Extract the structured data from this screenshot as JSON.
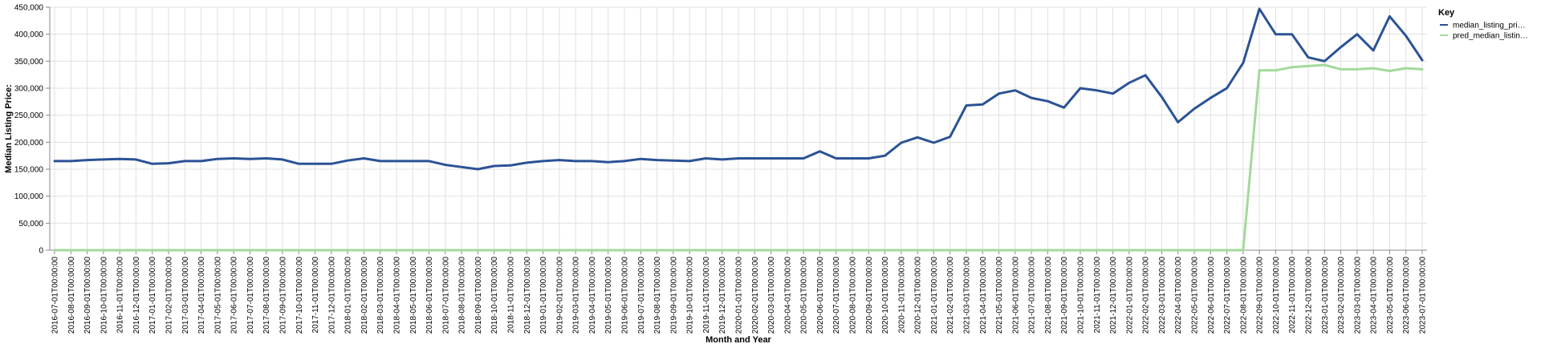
{
  "chart_data": {
    "type": "line",
    "xlabel": "Month and Year",
    "ylabel": "Median Listing Price:",
    "ylim": [
      0,
      450000
    ],
    "y_ticks": [
      "0",
      "50,000",
      "100,000",
      "150,000",
      "200,000",
      "250,000",
      "300,000",
      "350,000",
      "400,000",
      "450,000"
    ],
    "grid": true,
    "legend": {
      "title": "Key",
      "placement": "top-right",
      "entries": [
        {
          "label": "median_listing_pri…",
          "color": "#2b5296"
        },
        {
          "label": "pred_median_listin…",
          "color": "#a3d99b"
        }
      ]
    },
    "x": [
      "2016-07-01T00:00:00",
      "2016-08-01T00:00:00",
      "2016-09-01T00:00:00",
      "2016-10-01T00:00:00",
      "2016-11-01T00:00:00",
      "2016-12-01T00:00:00",
      "2017-01-01T00:00:00",
      "2017-02-01T00:00:00",
      "2017-03-01T00:00:00",
      "2017-04-01T00:00:00",
      "2017-05-01T00:00:00",
      "2017-06-01T00:00:00",
      "2017-07-01T00:00:00",
      "2017-08-01T00:00:00",
      "2017-09-01T00:00:00",
      "2017-10-01T00:00:00",
      "2017-11-01T00:00:00",
      "2017-12-01T00:00:00",
      "2018-01-01T00:00:00",
      "2018-02-01T00:00:00",
      "2018-03-01T00:00:00",
      "2018-04-01T00:00:00",
      "2018-05-01T00:00:00",
      "2018-06-01T00:00:00",
      "2018-07-01T00:00:00",
      "2018-08-01T00:00:00",
      "2018-09-01T00:00:00",
      "2018-10-01T00:00:00",
      "2018-11-01T00:00:00",
      "2018-12-01T00:00:00",
      "2019-01-01T00:00:00",
      "2019-02-01T00:00:00",
      "2019-03-01T00:00:00",
      "2019-04-01T00:00:00",
      "2019-05-01T00:00:00",
      "2019-06-01T00:00:00",
      "2019-07-01T00:00:00",
      "2019-08-01T00:00:00",
      "2019-09-01T00:00:00",
      "2019-10-01T00:00:00",
      "2019-11-01T00:00:00",
      "2019-12-01T00:00:00",
      "2020-01-01T00:00:00",
      "2020-02-01T00:00:00",
      "2020-03-01T00:00:00",
      "2020-04-01T00:00:00",
      "2020-05-01T00:00:00",
      "2020-06-01T00:00:00",
      "2020-07-01T00:00:00",
      "2020-08-01T00:00:00",
      "2020-09-01T00:00:00",
      "2020-10-01T00:00:00",
      "2020-11-01T00:00:00",
      "2020-12-01T00:00:00",
      "2021-01-01T00:00:00",
      "2021-02-01T00:00:00",
      "2021-03-01T00:00:00",
      "2021-04-01T00:00:00",
      "2021-05-01T00:00:00",
      "2021-06-01T00:00:00",
      "2021-07-01T00:00:00",
      "2021-08-01T00:00:00",
      "2021-09-01T00:00:00",
      "2021-10-01T00:00:00",
      "2021-11-01T00:00:00",
      "2021-12-01T00:00:00",
      "2022-01-01T00:00:00",
      "2022-02-01T00:00:00",
      "2022-03-01T00:00:00",
      "2022-04-01T00:00:00",
      "2022-05-01T00:00:00",
      "2022-06-01T00:00:00",
      "2022-07-01T00:00:00",
      "2022-08-01T00:00:00",
      "2022-09-01T00:00:00",
      "2022-10-01T00:00:00",
      "2022-11-01T00:00:00",
      "2022-12-01T00:00:00",
      "2023-01-01T00:00:00",
      "2023-02-01T00:00:00",
      "2023-03-01T00:00:00",
      "2023-04-01T00:00:00",
      "2023-05-01T00:00:00",
      "2023-06-01T00:00:00",
      "2023-07-01T00:00:00"
    ],
    "x_tick_labels": [
      "2016-07-01T00:00:00",
      "2016-08-01T00:00:00",
      "2016-09-01T00:00:00",
      "2016-10-01T00:00:00",
      "2016-11-01T00:00:00",
      "2016-12-01T00:00:00",
      "2017-01-01T00:00:00",
      "2017-02-01T00:00:00",
      "2017-03-01T00:00:00",
      "2017-04-01T00:00:00",
      "2017-05-01T00:00:00",
      "2017-06-01T00:00:00",
      "2017-07-01T00:00:00",
      "2017-08-01T00:00:00",
      "2017-09-01T00:00:00",
      "2017-10-01T00:00:00",
      "2017-11-01T00:00:00",
      "2017-12-01T00:00:00",
      "2018-01-01T00:00:00",
      "2018-02-01T00:00:00",
      "2018-03-01T00:00:00",
      "2018-04-01T00:00:00",
      "2018-05-01T00:00:00",
      "2018-06-01T00:00:00",
      "2018-07-01T00:00:00",
      "2018-08-01T00:00:00",
      "2018-09-01T00:00:00",
      "2018-10-01T00:00:00",
      "2018-11-01T00:00:00",
      "2018-12-01T00:00:00",
      "2019-01-01T00:00:00",
      "2019-02-01T00:00:00",
      "2019-03-01T00:00:00",
      "2019-04-01T00:00:00",
      "2019-05-01T00:00:00",
      "2019-06-01T00:00:00",
      "2019-07-01T00:00:00",
      "2019-08-01T00:00:00",
      "2019-09-01T00:00:00",
      "2019-10-01T00:00:00",
      "2019-11-01T00:00:00",
      "2019-12-01T00:00:00",
      "2020-01-01T00:00:00",
      "2020-02-01T00:00:00",
      "2020-03-01T00:00:00",
      "2020-04-01T00:00:00",
      "2020-05-01T00:00:00",
      "2020-06-01T00:00:00",
      "2020-07-01T00:00:00",
      "2020-08-01T00:00:00",
      "2020-09-01T00:00:00",
      "2020-10-01T00:00:00",
      "2020-11-01T00:00:00",
      "2020-12-01T00:00:00",
      "2021-01-01T00:00:00",
      "2021-02-01T00:00:00",
      "2021-03-01T00:00:00",
      "2021-04-01T00:00:00",
      "2021-05-01T00:00:00",
      "2021-06-01T00:00:00",
      "2021-07-01T00:00:00",
      "2021-08-01T00:00:00",
      "2021-09-01T00:00:00",
      "2021-10-01T00:00:00",
      "2021-11-01T00:00:00",
      "2021-12-01T00:00:00",
      "2022-01-01T00:00:00",
      "2022-02-01T00:00:00",
      "2022-03-01T00:00:00",
      "2022-04-01T00:00:00",
      "2022-05-01T00:00:00",
      "2022-06-01T00:00:00",
      "2022-07-01T00:00:00",
      "2022-08-01T00:00:00",
      "2022-09-01T00:00:00",
      "2022-10-01T00:00:00",
      "2022-11-01T00:00:00",
      "2022-12-01T00:00:00",
      "2023-01-01T00:00:00",
      "2023-02-01T00:00:00",
      "2023-03-01T00:00:00",
      "2023-04-01T00:00:00",
      "2023-05-01T00:00:00",
      "2023-06-01T00:00:00",
      "2023-07-01T00:00:00"
    ],
    "series": [
      {
        "name": "median_listing_pri…",
        "color": "#2b5296",
        "values": [
          165000,
          165000,
          167000,
          168000,
          169000,
          168000,
          160000,
          161000,
          165000,
          165000,
          169000,
          170000,
          169000,
          170000,
          168000,
          160000,
          160000,
          160000,
          166000,
          170000,
          165000,
          165000,
          165000,
          165000,
          158000,
          154000,
          150000,
          156000,
          157000,
          162000,
          165000,
          167000,
          165000,
          165000,
          163000,
          165000,
          169000,
          167000,
          166000,
          165000,
          170000,
          168000,
          170000,
          170000,
          170000,
          170000,
          170000,
          183000,
          170000,
          170000,
          170000,
          175000,
          199000,
          209000,
          199000,
          210000,
          268000,
          270000,
          290000,
          296000,
          282000,
          276000,
          264000,
          300000,
          296000,
          290000,
          310000,
          324000,
          284000,
          237000,
          262000,
          282000,
          300000,
          347000,
          447000,
          400000,
          400000,
          357000,
          350000,
          376000,
          400000,
          370000,
          433000,
          397000,
          352000
        ]
      },
      {
        "name": "pred_median_listin…",
        "color": "#a3d99b",
        "values": [
          0,
          0,
          0,
          0,
          0,
          0,
          0,
          0,
          0,
          0,
          0,
          0,
          0,
          0,
          0,
          0,
          0,
          0,
          0,
          0,
          0,
          0,
          0,
          0,
          0,
          0,
          0,
          0,
          0,
          0,
          0,
          0,
          0,
          0,
          0,
          0,
          0,
          0,
          0,
          0,
          0,
          0,
          0,
          0,
          0,
          0,
          0,
          0,
          0,
          0,
          0,
          0,
          0,
          0,
          0,
          0,
          0,
          0,
          0,
          0,
          0,
          0,
          0,
          0,
          0,
          0,
          0,
          0,
          0,
          0,
          0,
          0,
          0,
          0,
          333000,
          333000,
          339000,
          341000,
          343000,
          335000,
          335000,
          337000,
          332000,
          337000,
          335000
        ]
      }
    ]
  }
}
